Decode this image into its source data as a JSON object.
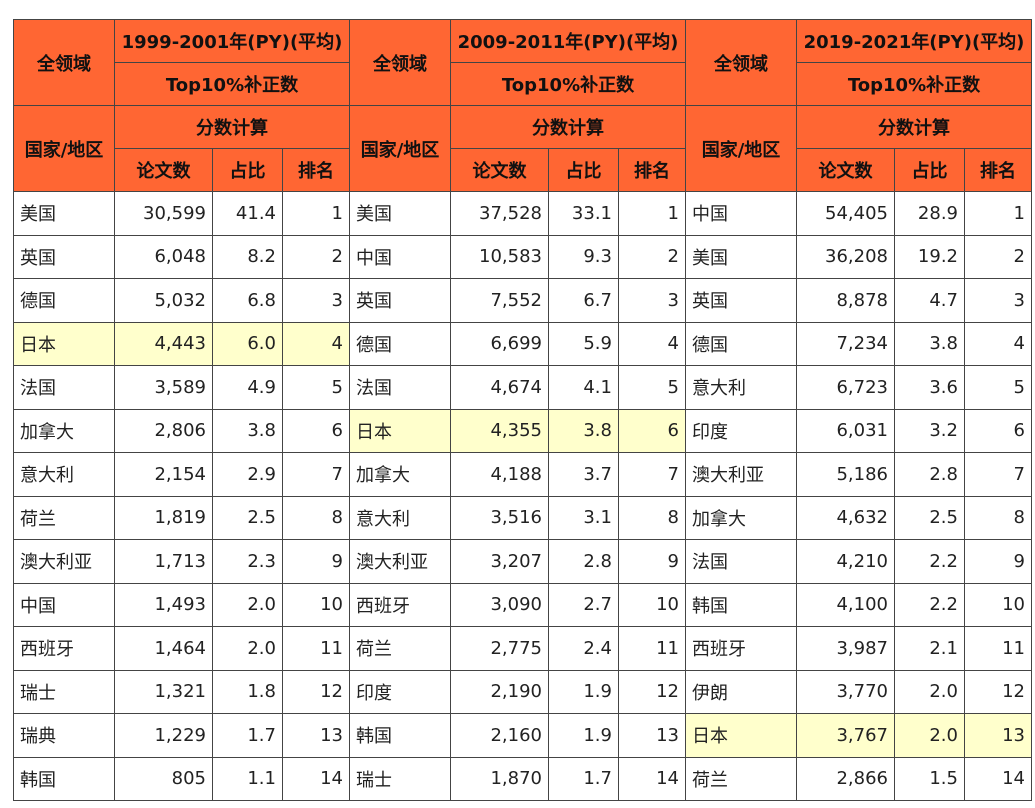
{
  "periods": [
    {
      "field_label": "全领域",
      "region_label": "国家/地区",
      "title": "1999-2001年(PY)(平均)",
      "subtitle": "Top10%补正数",
      "method": "分数计算",
      "col_papers": "论文数",
      "col_share": "占比",
      "col_rank": "排名",
      "rows": [
        {
          "country": "美国",
          "papers": "30,599",
          "share": "41.4",
          "rank": "1"
        },
        {
          "country": "英国",
          "papers": "6,048",
          "share": "8.2",
          "rank": "2"
        },
        {
          "country": "德国",
          "papers": "5,032",
          "share": "6.8",
          "rank": "3"
        },
        {
          "country": "日本",
          "papers": "4,443",
          "share": "6.0",
          "rank": "4"
        },
        {
          "country": "法国",
          "papers": "3,589",
          "share": "4.9",
          "rank": "5"
        },
        {
          "country": "加拿大",
          "papers": "2,806",
          "share": "3.8",
          "rank": "6"
        },
        {
          "country": "意大利",
          "papers": "2,154",
          "share": "2.9",
          "rank": "7"
        },
        {
          "country": "荷兰",
          "papers": "1,819",
          "share": "2.5",
          "rank": "8"
        },
        {
          "country": "澳大利亚",
          "papers": "1,713",
          "share": "2.3",
          "rank": "9"
        },
        {
          "country": "中国",
          "papers": "1,493",
          "share": "2.0",
          "rank": "10"
        },
        {
          "country": "西班牙",
          "papers": "1,464",
          "share": "2.0",
          "rank": "11"
        },
        {
          "country": "瑞士",
          "papers": "1,321",
          "share": "1.8",
          "rank": "12"
        },
        {
          "country": "瑞典",
          "papers": "1,229",
          "share": "1.7",
          "rank": "13"
        },
        {
          "country": "韩国",
          "papers": "805",
          "share": "1.1",
          "rank": "14"
        }
      ]
    },
    {
      "field_label": "全领域",
      "region_label": "国家/地区",
      "title": "2009-2011年(PY)(平均)",
      "subtitle": "Top10%补正数",
      "method": "分数计算",
      "col_papers": "论文数",
      "col_share": "占比",
      "col_rank": "排名",
      "rows": [
        {
          "country": "美国",
          "papers": "37,528",
          "share": "33.1",
          "rank": "1"
        },
        {
          "country": "中国",
          "papers": "10,583",
          "share": "9.3",
          "rank": "2"
        },
        {
          "country": "英国",
          "papers": "7,552",
          "share": "6.7",
          "rank": "3"
        },
        {
          "country": "德国",
          "papers": "6,699",
          "share": "5.9",
          "rank": "4"
        },
        {
          "country": "法国",
          "papers": "4,674",
          "share": "4.1",
          "rank": "5"
        },
        {
          "country": "日本",
          "papers": "4,355",
          "share": "3.8",
          "rank": "6"
        },
        {
          "country": "加拿大",
          "papers": "4,188",
          "share": "3.7",
          "rank": "7"
        },
        {
          "country": "意大利",
          "papers": "3,516",
          "share": "3.1",
          "rank": "8"
        },
        {
          "country": "澳大利亚",
          "papers": "3,207",
          "share": "2.8",
          "rank": "9"
        },
        {
          "country": "西班牙",
          "papers": "3,090",
          "share": "2.7",
          "rank": "10"
        },
        {
          "country": "荷兰",
          "papers": "2,775",
          "share": "2.4",
          "rank": "11"
        },
        {
          "country": "印度",
          "papers": "2,190",
          "share": "1.9",
          "rank": "12"
        },
        {
          "country": "韩国",
          "papers": "2,160",
          "share": "1.9",
          "rank": "13"
        },
        {
          "country": "瑞士",
          "papers": "1,870",
          "share": "1.7",
          "rank": "14"
        }
      ]
    },
    {
      "field_label": "全领域",
      "region_label": "国家/地区",
      "title": "2019-2021年(PY)(平均)",
      "subtitle": "Top10%补正数",
      "method": "分数计算",
      "col_papers": "论文数",
      "col_share": "占比",
      "col_rank": "排名",
      "rows": [
        {
          "country": "中国",
          "papers": "54,405",
          "share": "28.9",
          "rank": "1"
        },
        {
          "country": "美国",
          "papers": "36,208",
          "share": "19.2",
          "rank": "2"
        },
        {
          "country": "英国",
          "papers": "8,878",
          "share": "4.7",
          "rank": "3"
        },
        {
          "country": "德国",
          "papers": "7,234",
          "share": "3.8",
          "rank": "4"
        },
        {
          "country": "意大利",
          "papers": "6,723",
          "share": "3.6",
          "rank": "5"
        },
        {
          "country": "印度",
          "papers": "6,031",
          "share": "3.2",
          "rank": "6"
        },
        {
          "country": "澳大利亚",
          "papers": "5,186",
          "share": "2.8",
          "rank": "7"
        },
        {
          "country": "加拿大",
          "papers": "4,632",
          "share": "2.5",
          "rank": "8"
        },
        {
          "country": "法国",
          "papers": "4,210",
          "share": "2.2",
          "rank": "9"
        },
        {
          "country": "韩国",
          "papers": "4,100",
          "share": "2.2",
          "rank": "10"
        },
        {
          "country": "西班牙",
          "papers": "3,987",
          "share": "2.1",
          "rank": "11"
        },
        {
          "country": "伊朗",
          "papers": "3,770",
          "share": "2.0",
          "rank": "12"
        },
        {
          "country": "日本",
          "papers": "3,767",
          "share": "2.0",
          "rank": "13"
        },
        {
          "country": "荷兰",
          "papers": "2,866",
          "share": "1.5",
          "rank": "14"
        }
      ]
    }
  ],
  "highlight_country": "日本",
  "colors": {
    "header_bg": "#ff6633",
    "highlight_bg": "#ffffcc",
    "border": "#444444"
  }
}
